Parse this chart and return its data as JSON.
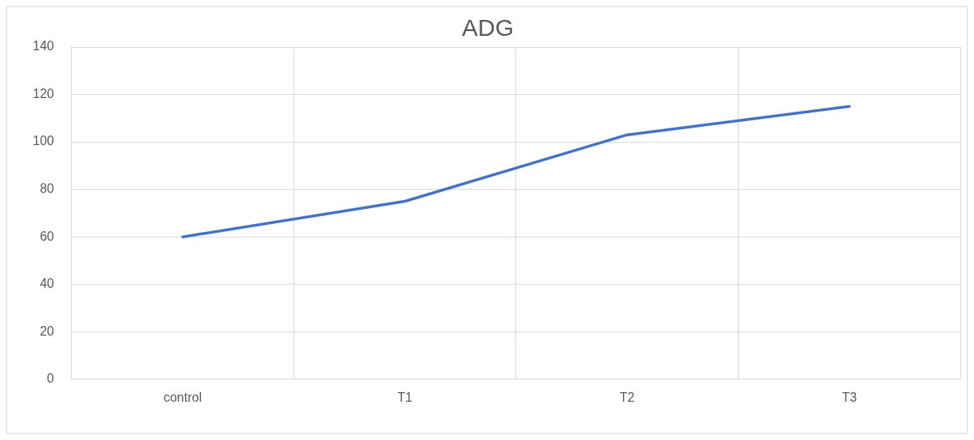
{
  "chart_data": {
    "type": "line",
    "title": "ADG",
    "categories": [
      "control",
      "T1",
      "T2",
      "T3"
    ],
    "series": [
      {
        "color": "#4472c4",
        "values": [
          60,
          75,
          103,
          115
        ]
      }
    ],
    "ylim": [
      0,
      140
    ],
    "yticks": [
      0,
      20,
      40,
      60,
      80,
      100,
      120,
      140
    ],
    "grid": true,
    "legend": false,
    "marker": "none"
  }
}
